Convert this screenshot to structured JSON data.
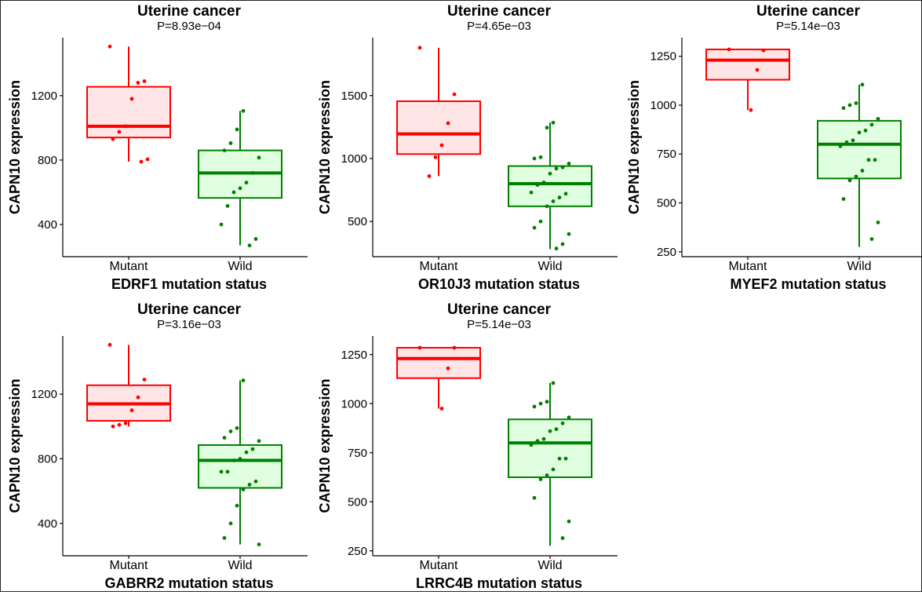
{
  "colors": {
    "mutant_line": "#ff0000",
    "mutant_fill": "#ffe5e5",
    "wild_line": "#008000",
    "wild_fill": "#e0ffe0"
  },
  "chart_data": [
    {
      "type": "box",
      "title": "Uterine cancer",
      "subtitle": "P=8.93e−04",
      "xlabel": "EDRF1 mutation status",
      "ylabel": "CAPN10 expression",
      "categories": [
        "Mutant",
        "Wild"
      ],
      "ylim": [
        200,
        1560
      ],
      "yticks": [
        400,
        800,
        1200
      ],
      "boxes": [
        {
          "name": "Mutant",
          "whisker_low": 790,
          "q1": 940,
          "median": 1010,
          "q3": 1255,
          "whisker_high": 1505,
          "points": [
            1505,
            1290,
            1280,
            1180,
            1010,
            975,
            930,
            805,
            790
          ]
        },
        {
          "name": "Wild",
          "whisker_low": 270,
          "q1": 565,
          "median": 720,
          "q3": 860,
          "whisker_high": 1105,
          "points": [
            1105,
            990,
            905,
            860,
            815,
            720,
            660,
            625,
            600,
            515,
            400,
            310,
            270
          ]
        }
      ]
    },
    {
      "type": "box",
      "title": "Uterine cancer",
      "subtitle": "P=4.65e−03",
      "xlabel": "OR10J3 mutation status",
      "ylabel": "CAPN10 expression",
      "categories": [
        "Mutant",
        "Wild"
      ],
      "ylim": [
        220,
        1960
      ],
      "yticks": [
        500,
        1000,
        1500
      ],
      "boxes": [
        {
          "name": "Mutant",
          "whisker_low": 860,
          "q1": 1035,
          "median": 1195,
          "q3": 1455,
          "whisker_high": 1880,
          "points": [
            1880,
            1510,
            1280,
            1105,
            1010,
            860
          ]
        },
        {
          "name": "Wild",
          "whisker_low": 280,
          "q1": 620,
          "median": 800,
          "q3": 940,
          "whisker_high": 1285,
          "points": [
            1285,
            1245,
            1010,
            1000,
            960,
            930,
            920,
            880,
            810,
            790,
            730,
            720,
            690,
            660,
            620,
            500,
            450,
            400,
            320,
            285
          ]
        }
      ]
    },
    {
      "type": "box",
      "title": "Uterine cancer",
      "subtitle": "P=5.14e−03",
      "xlabel": "MYEF2 mutation status",
      "ylabel": "CAPN10 expression",
      "categories": [
        "Mutant",
        "Wild"
      ],
      "ylim": [
        225,
        1345
      ],
      "yticks": [
        250,
        500,
        750,
        1000,
        1250
      ],
      "boxes": [
        {
          "name": "Mutant",
          "whisker_low": 975,
          "q1": 1130,
          "median": 1230,
          "q3": 1285,
          "whisker_high": 1285,
          "points": [
            1285,
            1280,
            1180,
            975
          ]
        },
        {
          "name": "Wild",
          "whisker_low": 275,
          "q1": 625,
          "median": 800,
          "q3": 920,
          "whisker_high": 1105,
          "points": [
            1105,
            1010,
            1000,
            985,
            930,
            900,
            870,
            860,
            820,
            810,
            790,
            720,
            720,
            665,
            635,
            615,
            520,
            400,
            315
          ]
        }
      ]
    },
    {
      "type": "box",
      "title": "Uterine cancer",
      "subtitle": "P=3.16e−03",
      "xlabel": "GABRR2 mutation status",
      "ylabel": "CAPN10 expression",
      "categories": [
        "Mutant",
        "Wild"
      ],
      "ylim": [
        200,
        1560
      ],
      "yticks": [
        400,
        800,
        1200
      ],
      "boxes": [
        {
          "name": "Mutant",
          "whisker_low": 1000,
          "q1": 1035,
          "median": 1140,
          "q3": 1255,
          "whisker_high": 1505,
          "points": [
            1505,
            1290,
            1180,
            1100,
            1020,
            1010,
            1000
          ]
        },
        {
          "name": "Wild",
          "whisker_low": 270,
          "q1": 620,
          "median": 790,
          "q3": 885,
          "whisker_high": 1285,
          "points": [
            1285,
            990,
            970,
            930,
            910,
            860,
            840,
            800,
            790,
            720,
            720,
            660,
            640,
            610,
            510,
            400,
            310,
            270
          ]
        }
      ]
    },
    {
      "type": "box",
      "title": "Uterine cancer",
      "subtitle": "P=5.14e−03",
      "xlabel": "LRRC4B mutation status",
      "ylabel": "CAPN10 expression",
      "categories": [
        "Mutant",
        "Wild"
      ],
      "ylim": [
        225,
        1345
      ],
      "yticks": [
        250,
        500,
        750,
        1000,
        1250
      ],
      "boxes": [
        {
          "name": "Mutant",
          "whisker_low": 975,
          "q1": 1130,
          "median": 1230,
          "q3": 1285,
          "whisker_high": 1285,
          "points": [
            1285,
            1285,
            1180,
            975
          ]
        },
        {
          "name": "Wild",
          "whisker_low": 275,
          "q1": 625,
          "median": 800,
          "q3": 920,
          "whisker_high": 1105,
          "points": [
            1105,
            1010,
            1000,
            985,
            930,
            900,
            870,
            860,
            820,
            810,
            790,
            720,
            720,
            665,
            635,
            615,
            520,
            400,
            315
          ]
        }
      ]
    }
  ]
}
